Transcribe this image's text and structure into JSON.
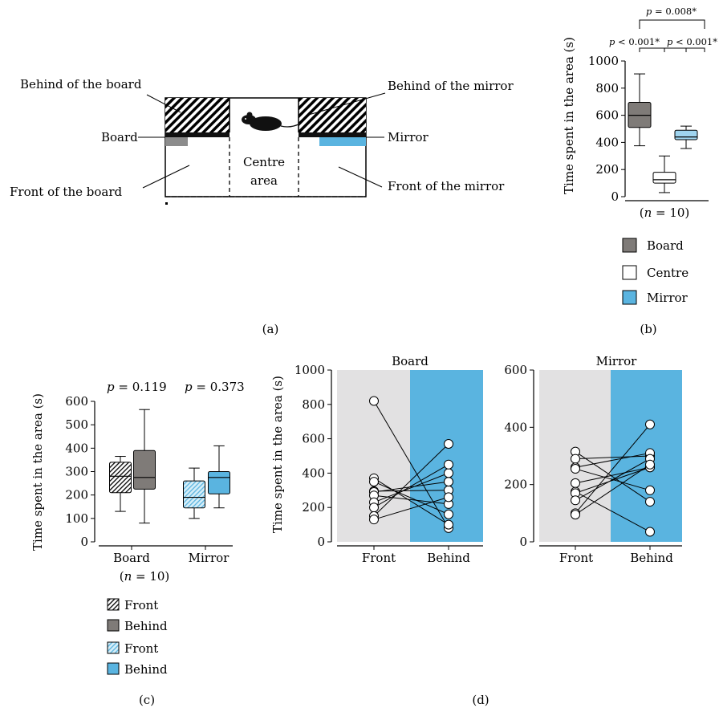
{
  "panel_labels": {
    "a": "(a)",
    "b": "(b)",
    "c": "(c)",
    "d": "(d)"
  },
  "diagram": {
    "behind_board": "Behind of the board",
    "board": "Board",
    "front_board": "Front of the board",
    "centre_line1": "Centre",
    "centre_line2": "area",
    "behind_mirror": "Behind of the mirror",
    "mirror": "Mirror",
    "front_mirror": "Front of the mirror",
    "colors": {
      "board": "#8c8c8c",
      "mirror": "#5ab4e0",
      "wall": "#111111"
    }
  },
  "chart_data": [
    {
      "id": "b",
      "type": "box",
      "ylabel": "Time spent in the area (s)",
      "ylim": [
        0,
        1000
      ],
      "yticks": [
        "0",
        "200",
        "400",
        "600",
        "800",
        "1000"
      ],
      "xlabel": "(n = 10)",
      "groups": [
        {
          "name": "Board",
          "color": "#7f7b78",
          "min": 375,
          "q1": 510,
          "median": 600,
          "q3": 695,
          "max": 905
        },
        {
          "name": "Centre",
          "color": "#ffffff",
          "min": 30,
          "q1": 100,
          "median": 125,
          "q3": 180,
          "max": 300
        },
        {
          "name": "Mirror",
          "color": "#9fd4ef",
          "min": 355,
          "q1": 420,
          "median": 440,
          "q3": 490,
          "max": 520
        }
      ],
      "annotations": [
        "p < 0.001*",
        "p < 0.001*",
        "p = 0.008*"
      ],
      "legend": [
        "Board",
        "Centre",
        "Mirror"
      ]
    },
    {
      "id": "c",
      "type": "box",
      "ylabel": "Time spent in the area (s)",
      "ylim": [
        0,
        600
      ],
      "yticks": [
        "0",
        "100",
        "200",
        "300",
        "400",
        "500",
        "600"
      ],
      "categories": [
        "Board",
        "Mirror"
      ],
      "xnote": "(n = 10)",
      "pvalues": [
        "p = 0.119",
        "p = 0.373"
      ],
      "series": [
        {
          "name": "Board Front",
          "pattern": "hatch-dark",
          "min": 130,
          "q1": 210,
          "median": 280,
          "q3": 340,
          "max": 365
        },
        {
          "name": "Board Behind",
          "color": "#7f7b78",
          "min": 80,
          "q1": 225,
          "median": 275,
          "q3": 390,
          "max": 565
        },
        {
          "name": "Mirror Front",
          "pattern": "hatch-blue",
          "min": 100,
          "q1": 145,
          "median": 190,
          "q3": 260,
          "max": 315
        },
        {
          "name": "Mirror Behind",
          "color": "#5ab4e0",
          "min": 145,
          "q1": 205,
          "median": 275,
          "q3": 300,
          "max": 410
        }
      ],
      "legend": [
        "Front",
        "Behind",
        "Front",
        "Behind"
      ]
    },
    {
      "id": "d-board",
      "type": "scatter",
      "title": "Board",
      "ylabel": "Time spent in the area (s)",
      "ylim": [
        0,
        1000
      ],
      "yticks": [
        "0",
        "200",
        "400",
        "600",
        "800",
        "1000"
      ],
      "categories": [
        "Front",
        "Behind"
      ],
      "pairs": [
        [
          820,
          80
        ],
        [
          370,
          100
        ],
        [
          350,
          160
        ],
        [
          295,
          300
        ],
        [
          290,
          350
        ],
        [
          270,
          220
        ],
        [
          230,
          400
        ],
        [
          200,
          450
        ],
        [
          150,
          570
        ],
        [
          130,
          260
        ]
      ]
    },
    {
      "id": "d-mirror",
      "type": "scatter",
      "title": "Mirror",
      "ylim": [
        0,
        600
      ],
      "yticks": [
        "0",
        "200",
        "400",
        "600"
      ],
      "categories": [
        "Front",
        "Behind"
      ],
      "pairs": [
        [
          315,
          140
        ],
        [
          290,
          300
        ],
        [
          260,
          310
        ],
        [
          255,
          180
        ],
        [
          205,
          260
        ],
        [
          175,
          35
        ],
        [
          170,
          260
        ],
        [
          145,
          290
        ],
        [
          100,
          410
        ],
        [
          95,
          270
        ]
      ]
    }
  ]
}
